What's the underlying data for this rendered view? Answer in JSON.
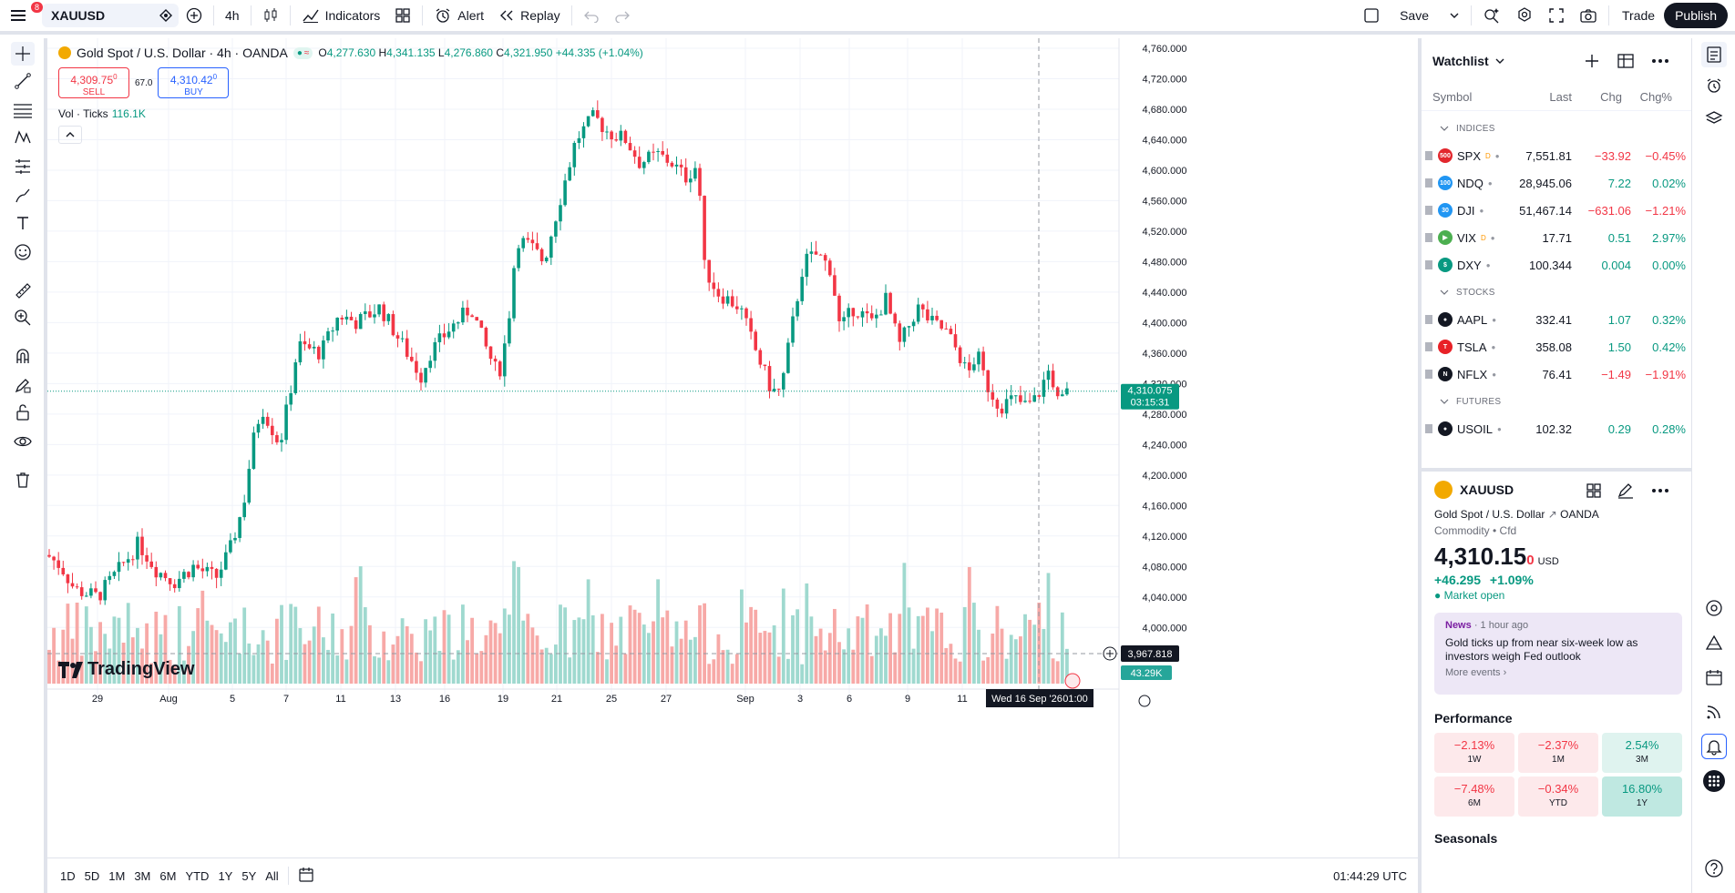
{
  "topbar": {
    "notif": "8",
    "symbol": "XAUUSD",
    "interval": "4h",
    "indicators": "Indicators",
    "alert": "Alert",
    "replay": "Replay",
    "save": "Save",
    "trade": "Trade",
    "publish": "Publish"
  },
  "legend": {
    "title": "Gold Spot / U.S. Dollar · 4h · OANDA",
    "o_label": "O",
    "o": "4,277.630",
    "h_label": "H",
    "h": "4,341.135",
    "l_label": "L",
    "l": "4,276.860",
    "c_label": "C",
    "c": "4,321.950",
    "chg": "+44.335 (+1.04%)"
  },
  "trade": {
    "sell_price": "4,309.75",
    "sell_sup": "0",
    "sell_label": "SELL",
    "spread": "67.0",
    "buy_price": "4,310.42",
    "buy_sup": "0",
    "buy_label": "BUY"
  },
  "volume": {
    "label": "Vol · Ticks",
    "value": "116.1K"
  },
  "price_axis": {
    "ticks": [
      "4,760.000",
      "4,720.000",
      "4,680.000",
      "4,640.000",
      "4,600.000",
      "4,560.000",
      "4,520.000",
      "4,480.000",
      "4,440.000",
      "4,400.000",
      "4,360.000",
      "4,320.000",
      "4,280.000",
      "4,240.000",
      "4,200.000",
      "4,160.000",
      "4,120.000",
      "4,080.000",
      "4,040.000",
      "4,000.000"
    ],
    "current_price": "4,310.075",
    "countdown": "03:15:31",
    "crosshair_price": "3,967.818",
    "vol_label": "43.29K"
  },
  "time_axis": {
    "ticks": [
      "29",
      "Aug",
      "5",
      "7",
      "11",
      "13",
      "16",
      "19",
      "21",
      "25",
      "27",
      "Sep",
      "3",
      "6",
      "9",
      "11"
    ],
    "crosshair": "Wed 16 Sep '26",
    "crosshair_time": "01:00"
  },
  "branding": "TradingView",
  "bottom": {
    "ranges": [
      "1D",
      "5D",
      "1M",
      "3M",
      "6M",
      "YTD",
      "1Y",
      "5Y",
      "All"
    ],
    "clock": "01:44:29 UTC"
  },
  "watchlist": {
    "title": "Watchlist",
    "cols": {
      "symbol": "Symbol",
      "last": "Last",
      "chg": "Chg",
      "chgp": "Chg%"
    },
    "sections": [
      {
        "name": "INDICES",
        "rows": [
          {
            "sym": "SPX",
            "badge": "D",
            "color": "#e2272d",
            "icon": "500",
            "last": "7,551.81",
            "chg": "−33.92",
            "chgp": "−0.45%",
            "dir": "neg"
          },
          {
            "sym": "NDQ",
            "badge": "",
            "color": "#2196f3",
            "icon": "100",
            "last": "28,945.06",
            "chg": "7.22",
            "chgp": "0.02%",
            "dir": "pos"
          },
          {
            "sym": "DJI",
            "badge": "",
            "color": "#2196f3",
            "icon": "30",
            "last": "51,467.14",
            "chg": "−631.06",
            "chgp": "−1.21%",
            "dir": "neg"
          },
          {
            "sym": "VIX",
            "badge": "D",
            "color": "#4caf50",
            "icon": "▶",
            "last": "17.71",
            "chg": "0.51",
            "chgp": "2.97%",
            "dir": "pos"
          },
          {
            "sym": "DXY",
            "badge": "",
            "color": "#089981",
            "icon": "$",
            "last": "100.344",
            "chg": "0.004",
            "chgp": "0.00%",
            "dir": "pos"
          }
        ]
      },
      {
        "name": "STOCKS",
        "rows": [
          {
            "sym": "AAPL",
            "badge": "",
            "color": "#131722",
            "icon": "●",
            "last": "332.41",
            "chg": "1.07",
            "chgp": "0.32%",
            "dir": "pos"
          },
          {
            "sym": "TSLA",
            "badge": "",
            "color": "#e82127",
            "icon": "T",
            "last": "358.08",
            "chg": "1.50",
            "chgp": "0.42%",
            "dir": "pos"
          },
          {
            "sym": "NFLX",
            "badge": "",
            "color": "#131722",
            "icon": "N",
            "last": "76.41",
            "chg": "−1.49",
            "chgp": "−1.91%",
            "dir": "neg"
          }
        ]
      },
      {
        "name": "FUTURES",
        "rows": [
          {
            "sym": "USOIL",
            "badge": "",
            "color": "#131722",
            "icon": "●",
            "last": "102.32",
            "chg": "0.29",
            "chgp": "0.28%",
            "dir": "pos"
          }
        ]
      }
    ]
  },
  "details": {
    "symbol": "XAUUSD",
    "name": "Gold Spot / U.S. Dollar",
    "exchange": "OANDA",
    "type": "Commodity • Cfd",
    "price": "4,310.15",
    "price_sup": "0",
    "currency": "USD",
    "chg": "+46.295",
    "chgp": "+1.09%",
    "status": "Market open",
    "news": {
      "tag": "News",
      "time": "1 hour ago",
      "headline": "Gold ticks up from near six-week low as investors weigh Fed outlook",
      "more": "More events ›"
    },
    "performance_title": "Performance",
    "performance": [
      {
        "v": "−2.13%",
        "p": "1W",
        "d": "n"
      },
      {
        "v": "−2.37%",
        "p": "1M",
        "d": "n"
      },
      {
        "v": "2.54%",
        "p": "3M",
        "d": "p"
      },
      {
        "v": "−7.48%",
        "p": "6M",
        "d": "n"
      },
      {
        "v": "−0.34%",
        "p": "YTD",
        "d": "n"
      },
      {
        "v": "16.80%",
        "p": "1Y",
        "d": "p2"
      }
    ],
    "seasonals": "Seasonals"
  }
}
